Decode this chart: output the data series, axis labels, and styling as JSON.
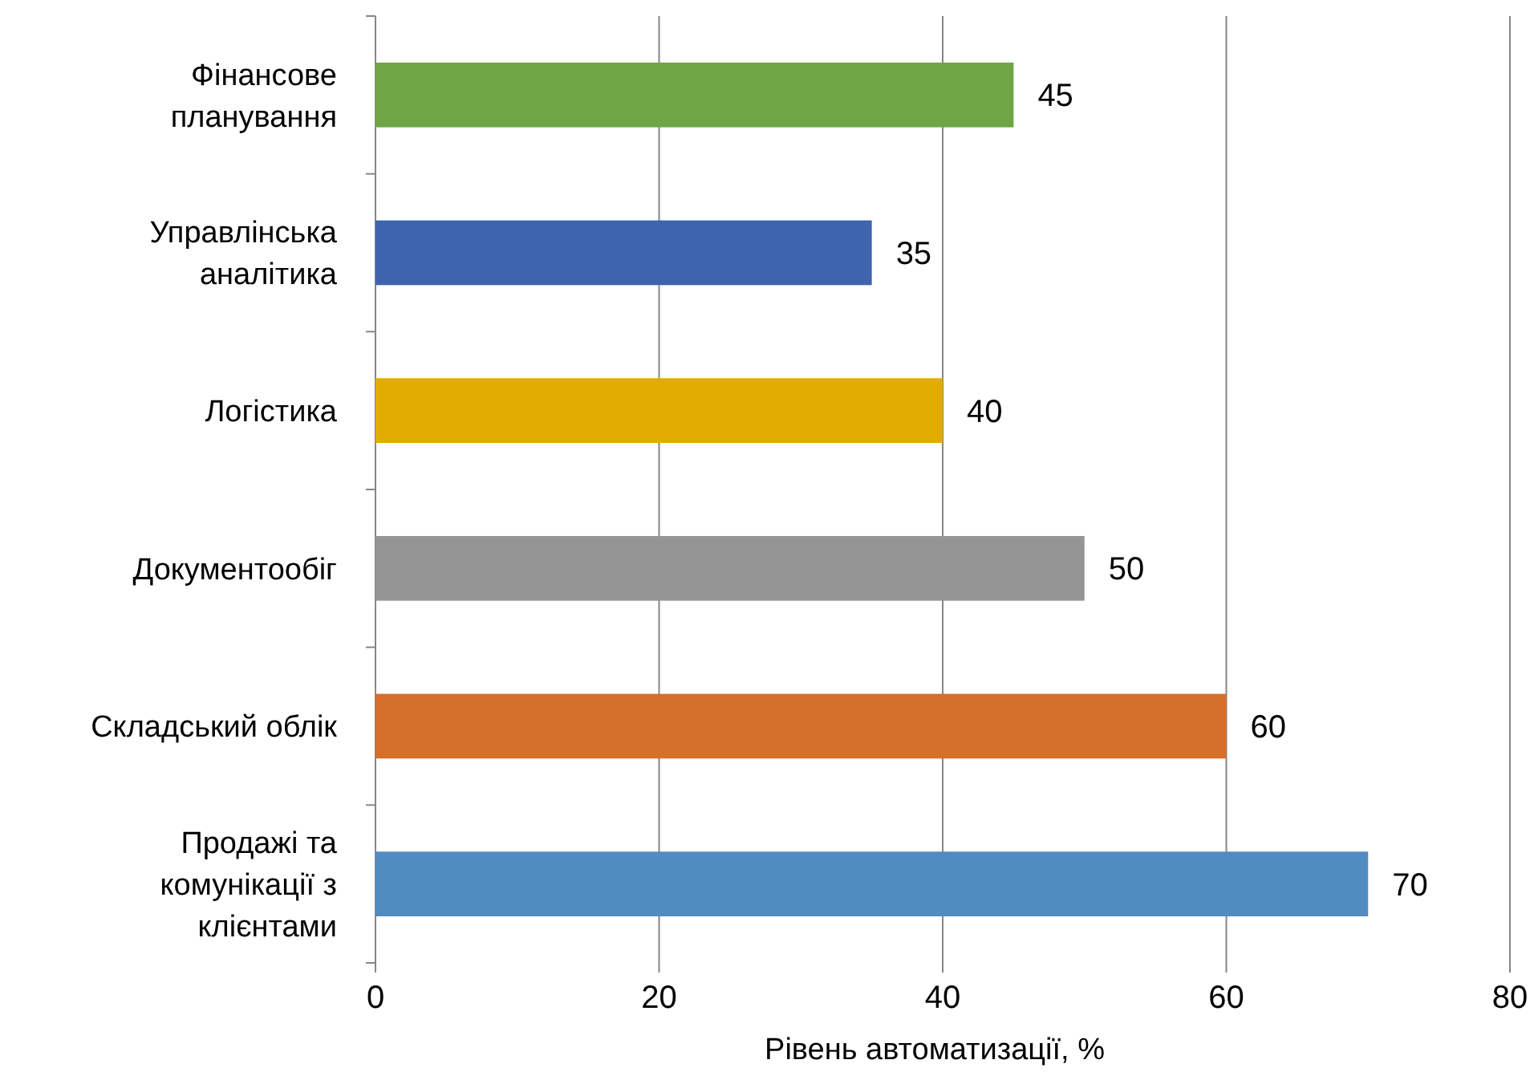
{
  "chart_data": {
    "type": "bar",
    "orientation": "horizontal",
    "xlabel": "Рівень автоматизації, %",
    "categories": [
      "Фінансове планування",
      "Управлінська аналітика",
      "Логістика",
      "Документообіг",
      "Складський облік",
      "Продажі та комунікації з клієнтами"
    ],
    "values": [
      45,
      35,
      40,
      50,
      60,
      70
    ],
    "colors": [
      "#70a545",
      "#3e64ae",
      "#e2ab00",
      "#959595",
      "#d56f2c",
      "#508cc0"
    ],
    "xlim": [
      0,
      80
    ],
    "xticks": [
      0,
      20,
      40,
      60,
      80
    ],
    "grid": "x",
    "data_labels": true
  }
}
